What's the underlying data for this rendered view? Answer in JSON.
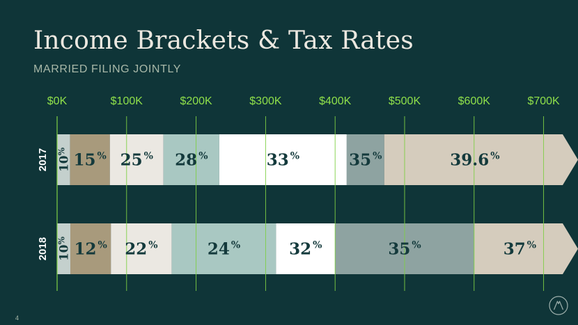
{
  "title": "Income Brackets & Tax Rates",
  "subtitle": "MARRIED FILING JOINTLY",
  "page_number": "4",
  "colors": {
    "background": "#0f3538",
    "axis_labels": "#8fe04a",
    "gridlines": "#7fcf45"
  },
  "chart_data": {
    "type": "bar",
    "orientation": "horizontal-stacked",
    "x_ticks": [
      "$0K",
      "$100K",
      "$200K",
      "$300K",
      "$400K",
      "$500K",
      "$600K",
      "$700K"
    ],
    "xlim": [
      0,
      700000
    ],
    "grid": true,
    "rows": [
      {
        "label": "2017",
        "segments": [
          {
            "start": 0,
            "end": 18650,
            "rate": "10",
            "color": "#c4d0cd",
            "vertical": true
          },
          {
            "start": 18650,
            "end": 75900,
            "rate": "15",
            "color": "#a89a7c"
          },
          {
            "start": 75900,
            "end": 153100,
            "rate": "25",
            "color": "#ebe8e2"
          },
          {
            "start": 153100,
            "end": 233350,
            "rate": "28",
            "color": "#a9c8c2"
          },
          {
            "start": 233350,
            "end": 416700,
            "rate": "33",
            "color": "#ffffff"
          },
          {
            "start": 416700,
            "end": 470700,
            "rate": "35",
            "color": "#8ea3a1"
          },
          {
            "start": 470700,
            "end": 730000,
            "rate": "39.6",
            "color": "#d5ccbd"
          }
        ]
      },
      {
        "label": "2018",
        "segments": [
          {
            "start": 0,
            "end": 19050,
            "rate": "10",
            "color": "#c4d0cd",
            "vertical": true
          },
          {
            "start": 19050,
            "end": 77400,
            "rate": "12",
            "color": "#a89a7c"
          },
          {
            "start": 77400,
            "end": 165000,
            "rate": "22",
            "color": "#ebe8e2"
          },
          {
            "start": 165000,
            "end": 315000,
            "rate": "24",
            "color": "#a9c8c2"
          },
          {
            "start": 315000,
            "end": 400000,
            "rate": "32",
            "color": "#ffffff"
          },
          {
            "start": 400000,
            "end": 600000,
            "rate": "35",
            "color": "#8ea3a1"
          },
          {
            "start": 600000,
            "end": 730000,
            "rate": "37",
            "color": "#d5ccbd"
          }
        ]
      }
    ],
    "percent_symbol": "%"
  }
}
